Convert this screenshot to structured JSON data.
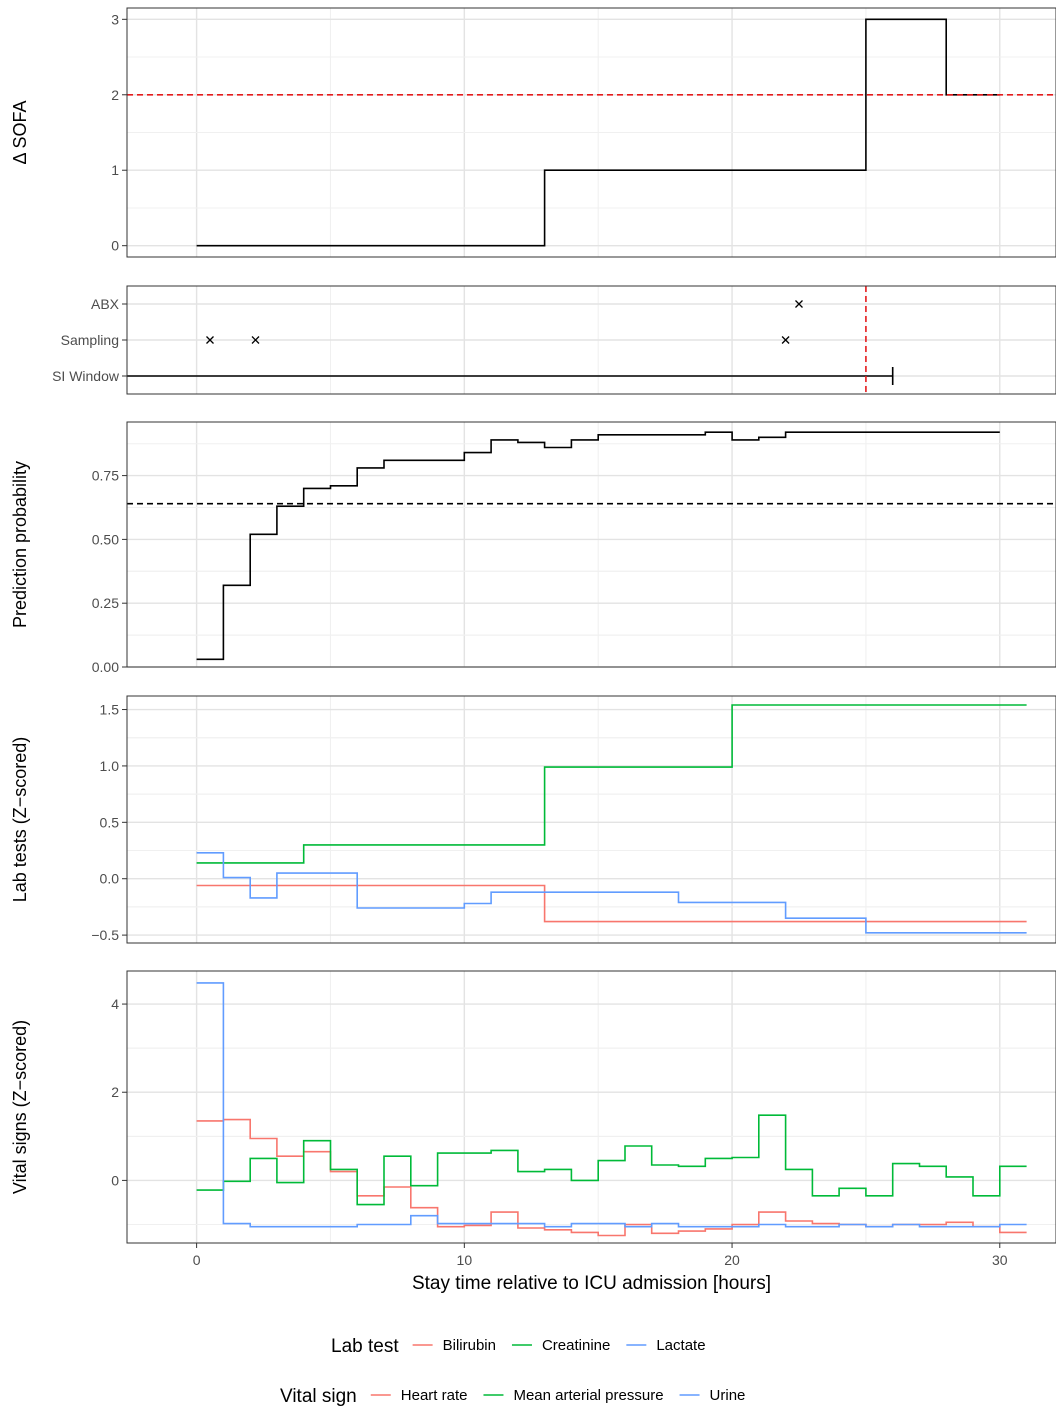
{
  "chart_data": [
    {
      "type": "line",
      "ylabel": "Δ SOFA",
      "ylim": [
        -0.15,
        3.15
      ],
      "yticks": [
        0,
        1,
        2,
        3
      ],
      "grid": true,
      "threshold": {
        "y": 2,
        "color": "#e41a1c",
        "style": "dashed"
      },
      "series": [
        {
          "color": "#000000",
          "step": true,
          "x": [
            0,
            13,
            25,
            28,
            30
          ],
          "y": [
            0,
            1,
            3,
            2,
            2
          ]
        }
      ]
    },
    {
      "type": "scatter",
      "categories": [
        "ABX",
        "Sampling",
        "SI Window"
      ],
      "grid": true,
      "events": [
        {
          "category": "ABX",
          "x": 22.5
        },
        {
          "category": "Sampling",
          "x": 0.5
        },
        {
          "category": "Sampling",
          "x": 2.2
        },
        {
          "category": "Sampling",
          "x": 22
        }
      ],
      "window": {
        "category": "SI Window",
        "from": -3,
        "to": 26
      },
      "vline": {
        "x": 25,
        "color": "#e41a1c",
        "style": "dashed"
      }
    },
    {
      "type": "line",
      "ylabel": "Prediction probability",
      "ylim": [
        0,
        0.96
      ],
      "yticks": [
        0,
        0.25,
        0.5,
        0.75
      ],
      "ytick_labels": [
        "0.00",
        "0.25",
        "0.50",
        "0.75"
      ],
      "grid": true,
      "threshold": {
        "y": 0.64,
        "color": "#000000",
        "style": "dashed"
      },
      "series": [
        {
          "color": "#000000",
          "step": true,
          "x": [
            0,
            1,
            2,
            3,
            4,
            5,
            6,
            7,
            8,
            9,
            10,
            11,
            12,
            13,
            14,
            15,
            16,
            17,
            18,
            19,
            20,
            21,
            22,
            23,
            24,
            25,
            26,
            27,
            28,
            29,
            30
          ],
          "y": [
            0.03,
            0.32,
            0.52,
            0.63,
            0.7,
            0.71,
            0.78,
            0.81,
            0.81,
            0.81,
            0.84,
            0.89,
            0.88,
            0.86,
            0.89,
            0.91,
            0.91,
            0.91,
            0.91,
            0.92,
            0.89,
            0.9,
            0.92,
            0.92,
            0.92,
            0.92,
            0.92,
            0.92,
            0.92,
            0.92,
            0.92
          ]
        }
      ]
    },
    {
      "type": "line",
      "ylabel": "Lab tests (Z−scored)",
      "ylim": [
        -0.57,
        1.62
      ],
      "yticks": [
        -0.5,
        0,
        0.5,
        1,
        1.5
      ],
      "ytick_labels": [
        "−0.5",
        "0.0",
        "0.5",
        "1.0",
        "1.5"
      ],
      "grid": true,
      "series": [
        {
          "name": "Bilirubin",
          "color": "#f8766d",
          "step": true,
          "x": [
            0,
            13,
            31
          ],
          "y": [
            -0.06,
            -0.38,
            -0.38
          ]
        },
        {
          "name": "Creatinine",
          "color": "#00ba38",
          "step": true,
          "x": [
            0,
            4,
            13,
            20,
            31
          ],
          "y": [
            0.14,
            0.3,
            0.99,
            1.54,
            1.54
          ]
        },
        {
          "name": "Lactate",
          "color": "#619cff",
          "step": true,
          "x": [
            0,
            1,
            2,
            3,
            6,
            10,
            11,
            18,
            22,
            25,
            31
          ],
          "y": [
            0.23,
            0.01,
            -0.17,
            0.05,
            -0.26,
            -0.22,
            -0.12,
            -0.21,
            -0.35,
            -0.48,
            -0.48
          ]
        }
      ]
    },
    {
      "type": "line",
      "ylabel": "Vital signs (Z−scored)",
      "xlabel": "Stay time relative to ICU admission [hours]",
      "xlim": [
        -2.6,
        32.1
      ],
      "xticks": [
        0,
        10,
        20,
        30
      ],
      "ylim": [
        -1.42,
        4.75
      ],
      "yticks": [
        0,
        2,
        4
      ],
      "grid": true,
      "series": [
        {
          "name": "Heart rate",
          "color": "#f8766d",
          "step": true,
          "x": [
            0,
            1,
            2,
            3,
            4,
            5,
            6,
            7,
            8,
            9,
            10,
            11,
            12,
            13,
            14,
            15,
            16,
            17,
            18,
            19,
            20,
            21,
            22,
            23,
            24,
            25,
            26,
            27,
            28,
            29,
            30,
            31
          ],
          "y": [
            1.35,
            1.38,
            0.95,
            0.55,
            0.65,
            0.2,
            -0.35,
            -0.15,
            -0.62,
            -1.05,
            -1.02,
            -0.72,
            -1.08,
            -1.12,
            -1.18,
            -1.25,
            -1.0,
            -1.2,
            -1.15,
            -1.1,
            -1.0,
            -0.72,
            -0.92,
            -0.98,
            -1.0,
            -1.05,
            -1.0,
            -1.0,
            -0.95,
            -1.05,
            -1.18,
            -1.18
          ]
        },
        {
          "name": "Mean arterial pressure",
          "color": "#00ba38",
          "step": true,
          "x": [
            0,
            1,
            2,
            3,
            4,
            5,
            6,
            7,
            8,
            9,
            10,
            11,
            12,
            13,
            14,
            15,
            16,
            17,
            18,
            19,
            20,
            21,
            22,
            23,
            24,
            25,
            26,
            27,
            28,
            29,
            30,
            31
          ],
          "y": [
            -0.22,
            -0.02,
            0.5,
            -0.05,
            0.9,
            0.25,
            -0.55,
            0.55,
            -0.12,
            0.62,
            0.62,
            0.68,
            0.2,
            0.25,
            0.0,
            0.45,
            0.78,
            0.35,
            0.32,
            0.5,
            0.52,
            1.48,
            0.25,
            -0.35,
            -0.18,
            -0.35,
            0.38,
            0.32,
            0.08,
            -0.35,
            0.32,
            0.32
          ]
        },
        {
          "name": "Urine",
          "color": "#619cff",
          "step": true,
          "x": [
            0,
            1,
            2,
            3,
            4,
            5,
            6,
            7,
            8,
            9,
            10,
            11,
            12,
            13,
            14,
            15,
            16,
            17,
            18,
            19,
            20,
            21,
            22,
            23,
            24,
            25,
            26,
            27,
            28,
            29,
            30,
            31
          ],
          "y": [
            4.48,
            -0.98,
            -1.05,
            -1.05,
            -1.05,
            -1.05,
            -1.0,
            -1.0,
            -0.8,
            -0.98,
            -0.98,
            -0.98,
            -0.98,
            -1.05,
            -0.98,
            -0.98,
            -1.05,
            -0.98,
            -1.05,
            -1.05,
            -1.05,
            -1.0,
            -1.05,
            -1.05,
            -1.0,
            -1.05,
            -1.0,
            -1.05,
            -1.05,
            -1.05,
            -1.0,
            -1.0
          ]
        }
      ]
    }
  ],
  "legends": {
    "lab": {
      "title": "Lab test",
      "entries": [
        "Bilirubin",
        "Creatinine",
        "Lactate"
      ],
      "colors": [
        "#f8766d",
        "#00ba38",
        "#619cff"
      ]
    },
    "vital": {
      "title": "Vital sign",
      "entries": [
        "Heart rate",
        "Mean arterial pressure",
        "Urine"
      ],
      "colors": [
        "#f8766d",
        "#00ba38",
        "#619cff"
      ]
    }
  }
}
